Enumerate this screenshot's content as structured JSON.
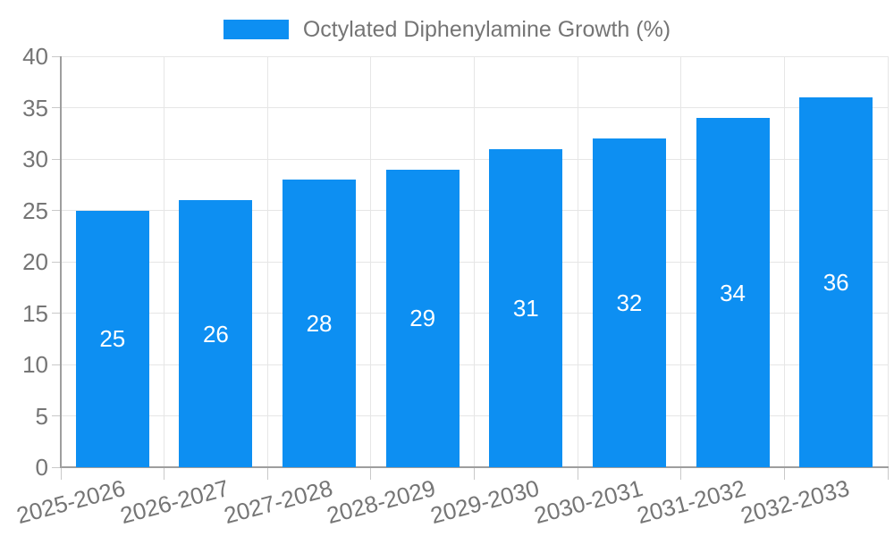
{
  "legend": {
    "label": "Octylated Diphenylamine Growth (%)"
  },
  "colors": {
    "bar": "#0d8ff2",
    "axis_text": "#757575",
    "grid": "#e6e6e6",
    "tick": "#c9c9c9",
    "axis_line": "#9e9e9e",
    "value_label": "#ffffff",
    "background": "#ffffff"
  },
  "chart_data": {
    "type": "bar",
    "title": "",
    "legend": [
      "Octylated Diphenylamine Growth (%)"
    ],
    "legend_position": "top",
    "categories": [
      "2025-2026",
      "2026-2027",
      "2027-2028",
      "2028-2029",
      "2029-2030",
      "2030-2031",
      "2031-2032",
      "2032-2033"
    ],
    "values": [
      25,
      26,
      28,
      29,
      31,
      32,
      34,
      36
    ],
    "xlabel": "",
    "ylabel": "",
    "ylim": [
      0,
      40
    ],
    "ytick_step": 5,
    "yticks": [
      0,
      5,
      10,
      15,
      20,
      25,
      30,
      35,
      40
    ],
    "grid": true,
    "bar_labels_inside": true,
    "x_label_rotation_deg": -15
  }
}
